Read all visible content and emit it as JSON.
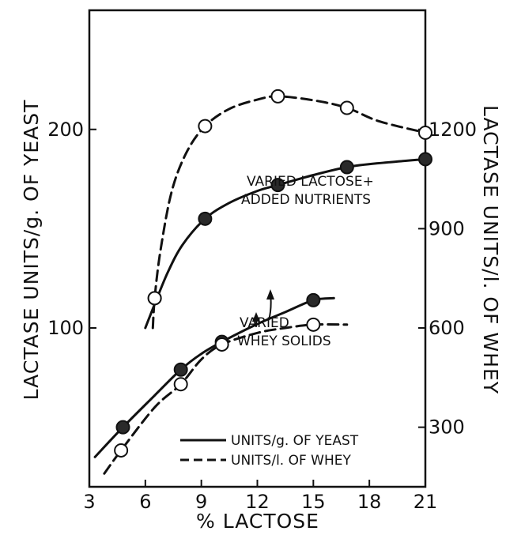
{
  "chart_data": {
    "type": "line",
    "xlabel": "% LACTOSE",
    "ylabel_left": "LACTASE UNITS/g. OF YEAST",
    "ylabel_right": "LACTASE UNITS/l. OF WHEY",
    "xlim": [
      3,
      21
    ],
    "ylim_left": [
      20,
      260
    ],
    "ylim_right": [
      120,
      1560
    ],
    "x_ticks": [
      3,
      6,
      9,
      12,
      15,
      18,
      21
    ],
    "y_ticks_left": [
      100,
      200
    ],
    "y_ticks_right": [
      300,
      600,
      900,
      1200
    ],
    "grid": false,
    "legend_position": "bottom-right",
    "legend": [
      {
        "label": "UNITS/g. OF YEAST",
        "style": "solid"
      },
      {
        "label": "UNITS/l. OF WHEY",
        "style": "dashed"
      }
    ],
    "annotations": {
      "group1_line1": "VARIED LACTOSE+",
      "group1_line2": "ADDED NUTRIENTS",
      "group2_line1": "VARIED",
      "group2_line2": "WHEY SOLIDS"
    },
    "series": [
      {
        "group": "varied-lactose-added-nutrients",
        "axis": "left",
        "style": "solid",
        "marker": "filled",
        "points": [
          [
            6.5,
            115
          ],
          [
            9.2,
            155
          ],
          [
            13.1,
            172
          ],
          [
            16.8,
            181
          ],
          [
            21.0,
            185
          ]
        ],
        "curve": [
          [
            6.0,
            100
          ],
          [
            6.5,
            112
          ],
          [
            7.2,
            128
          ],
          [
            8.0,
            142
          ],
          [
            9.2,
            155
          ],
          [
            10.5,
            163
          ],
          [
            12.0,
            169
          ],
          [
            13.1,
            172
          ],
          [
            15.0,
            177
          ],
          [
            16.8,
            181
          ],
          [
            18.5,
            183
          ],
          [
            21.0,
            185
          ]
        ]
      },
      {
        "group": "varied-lactose-added-nutrients",
        "axis": "right",
        "style": "dashed",
        "marker": "open",
        "points": [
          [
            6.5,
            690
          ],
          [
            9.2,
            1210
          ],
          [
            13.1,
            1300
          ],
          [
            16.8,
            1265
          ],
          [
            21.0,
            1190
          ]
        ],
        "curve": [
          [
            6.4,
            600
          ],
          [
            6.5,
            690
          ],
          [
            6.8,
            830
          ],
          [
            7.4,
            1010
          ],
          [
            8.2,
            1130
          ],
          [
            9.2,
            1210
          ],
          [
            10.5,
            1262
          ],
          [
            12.0,
            1290
          ],
          [
            13.1,
            1300
          ],
          [
            15.0,
            1288
          ],
          [
            16.8,
            1265
          ],
          [
            18.5,
            1225
          ],
          [
            21.0,
            1190
          ]
        ]
      },
      {
        "group": "varied-whey-solids",
        "axis": "left",
        "style": "solid",
        "marker": "filled",
        "points": [
          [
            4.8,
            50
          ],
          [
            7.9,
            79
          ],
          [
            10.1,
            93
          ],
          [
            15.0,
            114
          ]
        ],
        "curve": [
          [
            3.3,
            35
          ],
          [
            4.8,
            50
          ],
          [
            6.5,
            66
          ],
          [
            7.9,
            79
          ],
          [
            9.0,
            87
          ],
          [
            10.1,
            93
          ],
          [
            12.0,
            102
          ],
          [
            13.5,
            108
          ],
          [
            15.0,
            114
          ],
          [
            16.1,
            115
          ]
        ]
      },
      {
        "group": "varied-whey-solids",
        "axis": "right",
        "style": "dashed",
        "marker": "open",
        "points": [
          [
            4.7,
            230
          ],
          [
            7.9,
            430
          ],
          [
            10.1,
            550
          ],
          [
            15.0,
            610
          ]
        ],
        "curve": [
          [
            3.8,
            160
          ],
          [
            4.7,
            230
          ],
          [
            6.5,
            360
          ],
          [
            7.9,
            430
          ],
          [
            9.0,
            505
          ],
          [
            10.1,
            550
          ],
          [
            12.0,
            585
          ],
          [
            13.5,
            600
          ],
          [
            15.0,
            610
          ],
          [
            16.8,
            610
          ]
        ]
      }
    ]
  }
}
